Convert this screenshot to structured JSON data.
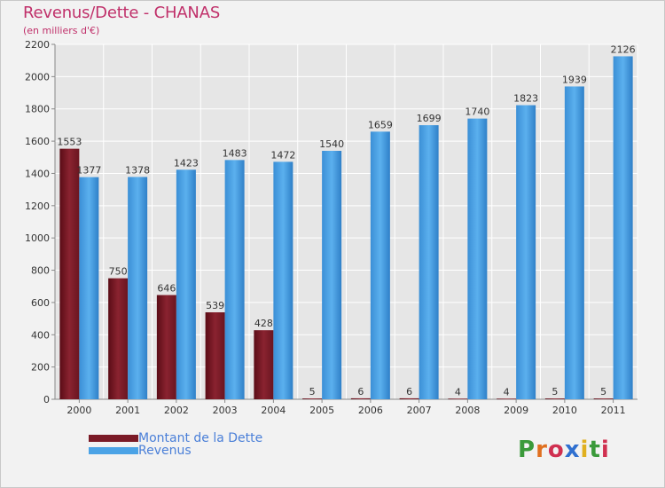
{
  "title": "Revenus/Dette - CHANAS",
  "subtitle": "(en milliers d'€)",
  "colors": {
    "dette": "#7a1a26",
    "revenus": "#4ba3e6",
    "axis_text": "#333333",
    "grid": "#ffffff"
  },
  "legend": {
    "dette_label": "Montant de la Dette",
    "revenus_label": "Revenus"
  },
  "logo": {
    "text": "Proxiti",
    "letters": [
      "P",
      "r",
      "o",
      "x",
      "i",
      "t",
      "i"
    ],
    "letter_colors": [
      "#3a9a3a",
      "#e07020",
      "#d03050",
      "#3070d0",
      "#e0b020",
      "#3a9a3a",
      "#d03050"
    ]
  },
  "chart_data": {
    "type": "bar",
    "title": "Revenus/Dette - CHANAS",
    "subtitle": "(en milliers d'€)",
    "xlabel": "",
    "ylabel": "",
    "ylim": [
      0,
      2200
    ],
    "yticks": [
      0,
      200,
      400,
      600,
      800,
      1000,
      1200,
      1400,
      1600,
      1800,
      2000,
      2200
    ],
    "grid": true,
    "legend_position": "bottom-left",
    "categories": [
      "2000",
      "2001",
      "2002",
      "2003",
      "2004",
      "2005",
      "2006",
      "2007",
      "2008",
      "2009",
      "2010",
      "2011"
    ],
    "series": [
      {
        "name": "Montant de la Dette",
        "values": [
          1553,
          750,
          646,
          539,
          428,
          5,
          6,
          6,
          4,
          4,
          5,
          5
        ]
      },
      {
        "name": "Revenus",
        "values": [
          1377,
          1378,
          1423,
          1483,
          1472,
          1540,
          1659,
          1699,
          1740,
          1823,
          1939,
          2126
        ]
      }
    ]
  }
}
